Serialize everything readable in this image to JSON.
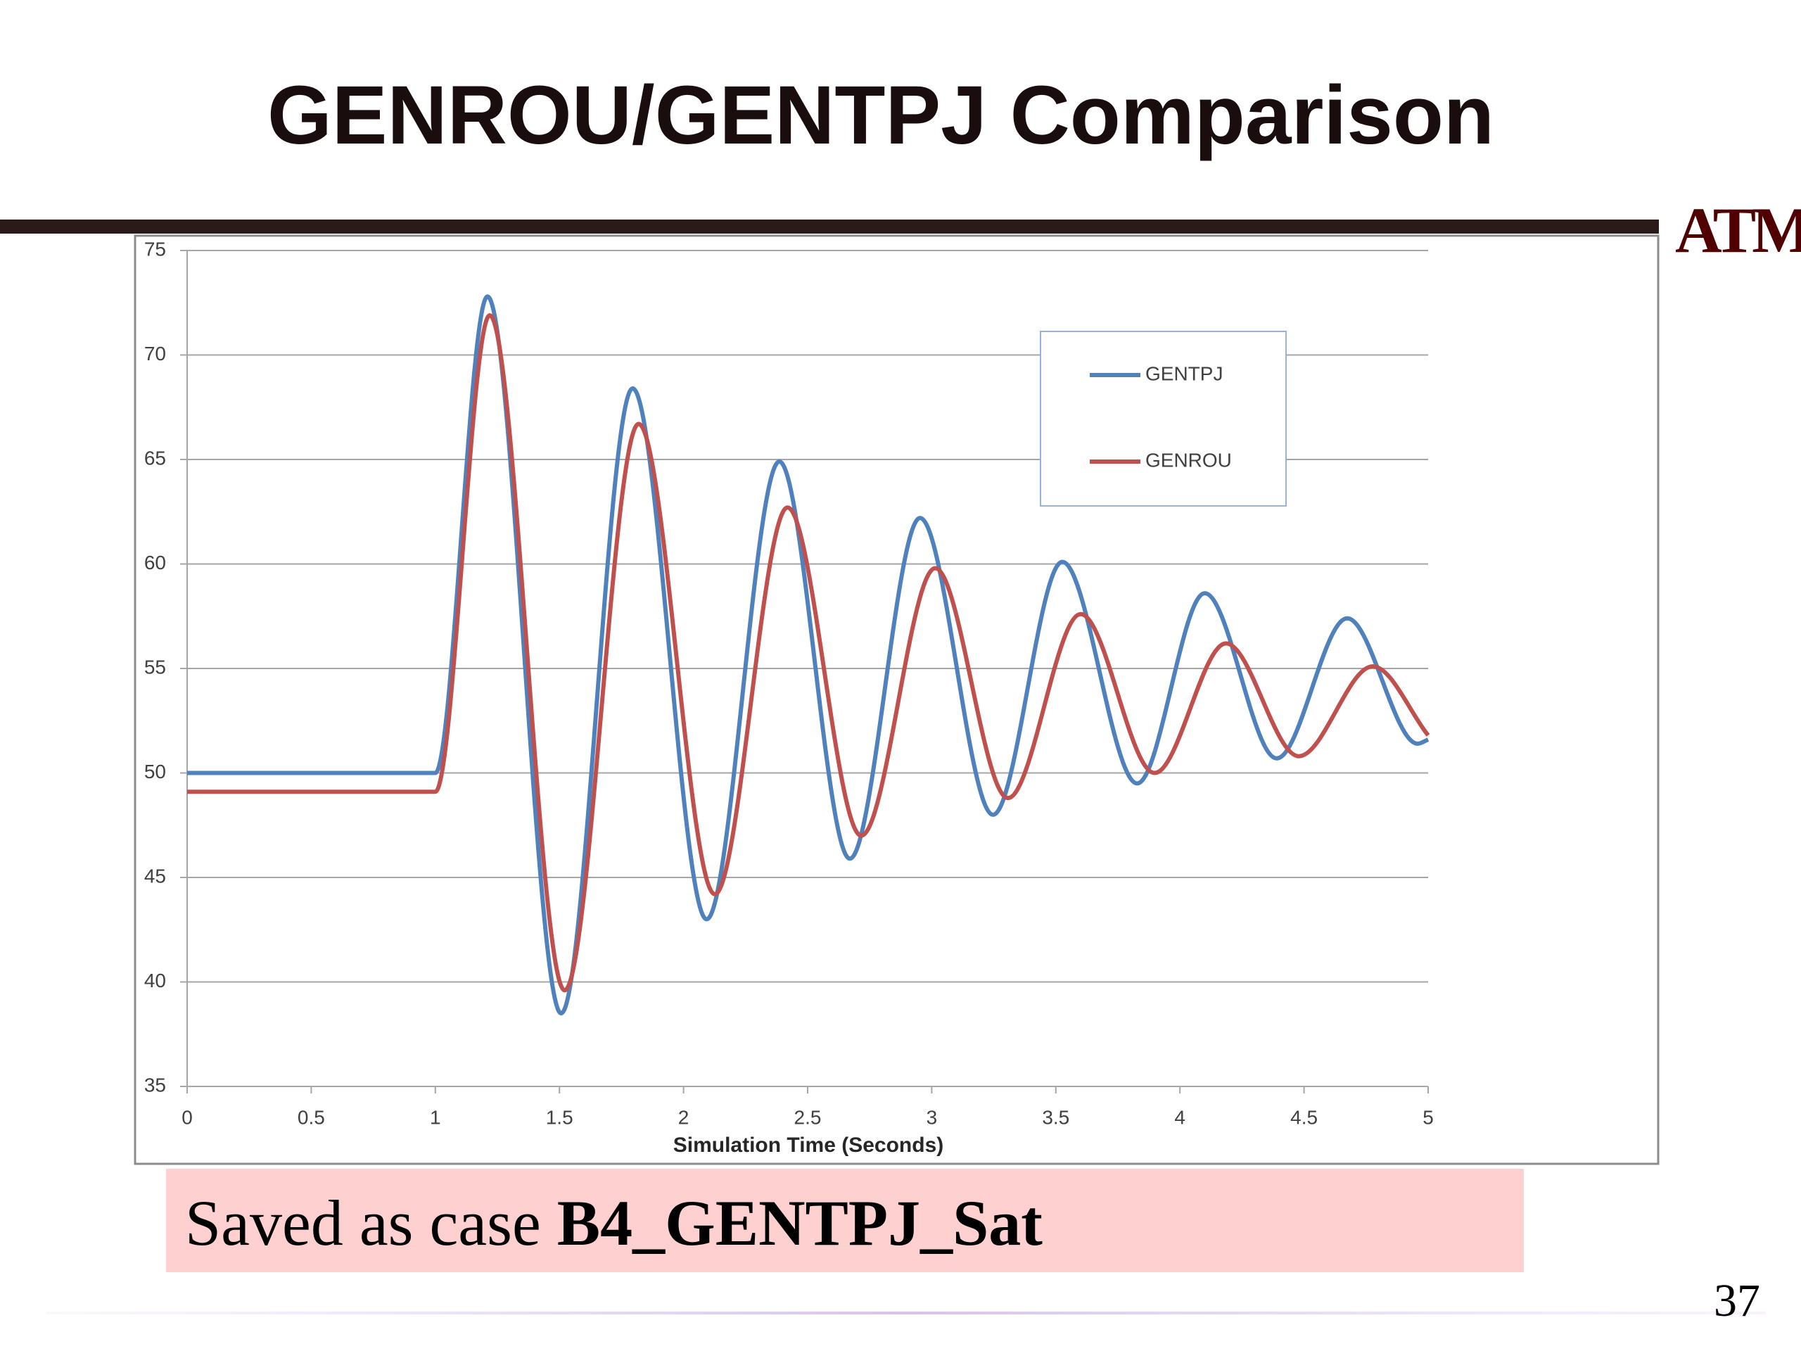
{
  "slide": {
    "title": "GENROU/GENTPJ Comparison",
    "logo": "ATM",
    "note": "Saved as case ",
    "note_bold": "B4_GENTPJ_Sat",
    "page_number": "37"
  },
  "chart_data": {
    "type": "line",
    "xlabel": "Simulation Time (Seconds)",
    "xlim": [
      0,
      5
    ],
    "xticks": [
      0,
      0.5,
      1,
      1.5,
      2,
      2.5,
      3,
      3.5,
      4,
      4.5,
      5
    ],
    "ylim": [
      35,
      75
    ],
    "yticks": [
      35,
      40,
      45,
      50,
      55,
      60,
      65,
      70,
      75
    ],
    "grid": true,
    "legend": "upper right",
    "series": [
      {
        "name": "GENTPJ",
        "color": "#4f81bd",
        "x": [
          0,
          1,
          1.21,
          1.507,
          1.795,
          2.093,
          2.386,
          2.67,
          2.953,
          3.247,
          3.526,
          3.828,
          4.1,
          4.39,
          4.674,
          4.958,
          5
        ],
        "values": [
          50,
          50,
          72.8,
          38.5,
          68.4,
          43,
          64.9,
          45.9,
          62.2,
          48,
          60.1,
          49.5,
          58.6,
          50.7,
          57.4,
          51.4,
          51.6
        ]
      },
      {
        "name": "GENROU",
        "color": "#c0504d",
        "x": [
          0,
          1,
          1.219,
          1.521,
          1.819,
          2.126,
          2.419,
          2.716,
          3.014,
          3.307,
          3.6,
          3.898,
          4.186,
          4.479,
          4.777,
          5
        ],
        "values": [
          49.1,
          49.1,
          71.9,
          39.6,
          66.7,
          44.2,
          62.7,
          47,
          59.8,
          48.8,
          57.6,
          50,
          56.2,
          50.8,
          55.1,
          51.8
        ]
      }
    ]
  }
}
